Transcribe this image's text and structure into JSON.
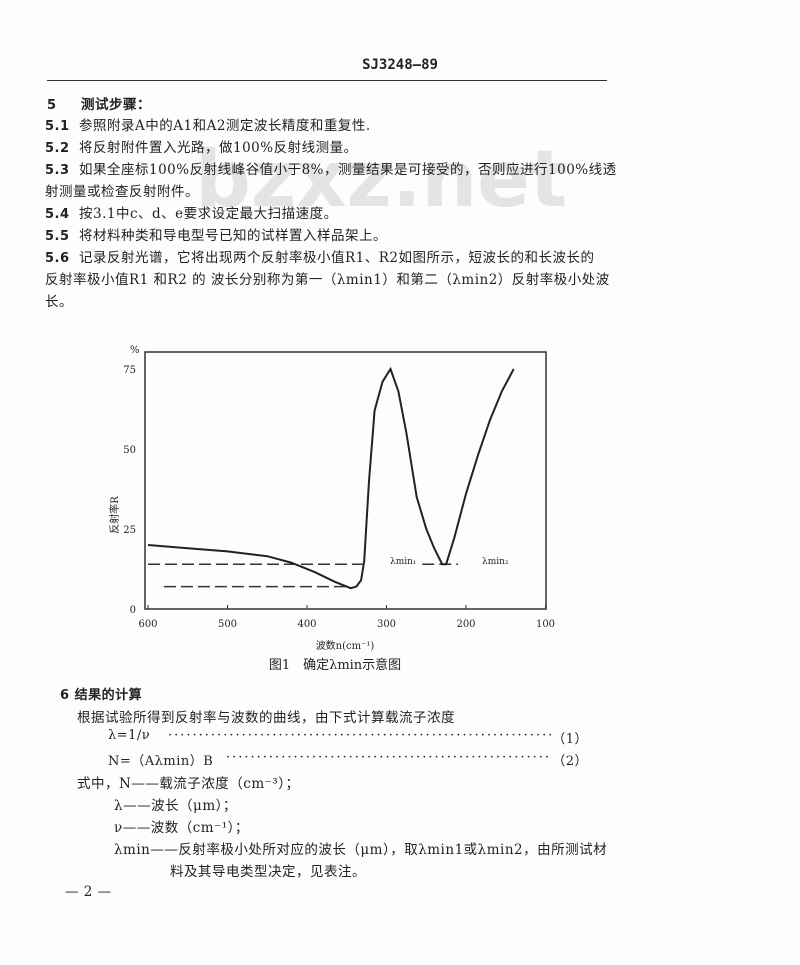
{
  "header": "SJ3248—89",
  "watermark": "bzxz.net",
  "section5": {
    "number": "5",
    "title": "测试步骤：",
    "items": [
      {
        "num": "5.1",
        "text": "参照附录A中的A1和A2测定波长精度和重复性."
      },
      {
        "num": "5.2",
        "text": "将反射附件置入光路，做100%反射线测量。"
      },
      {
        "num": "5.3",
        "text": "如果全座标100%反射线峰谷值小于8%，测量结果是可接受的，否则应进行100%线透",
        "cont": "射测量或检查反射附件。"
      },
      {
        "num": "5.4",
        "text": "按3.1中c、d、e要求设定最大扫描速度。"
      },
      {
        "num": "5.5",
        "text": "将材料种类和导电型号已知的试样置入样品架上。"
      },
      {
        "num": "5.6",
        "text": "记录反射光谱，它将出现两个反射率极小值R1、R2如图所示，短波长的和长波长的",
        "cont": "反射率极小值R1 和R2 的 波长分别称为第一（λmin1）和第二（λmin2）反射率极小处波",
        "cont2": "长。"
      }
    ]
  },
  "chart_data": {
    "type": "line",
    "caption": "图1　确定λmin示意图",
    "xlabel": "波数n(cm⁻¹)",
    "ylabel": "反射率R",
    "yunit": "%",
    "xlim": [
      600,
      100
    ],
    "ylim": [
      0,
      80
    ],
    "xticks": [
      "600",
      "500",
      "400",
      "300",
      "200",
      "100"
    ],
    "yticks": [
      "0",
      "25",
      "50",
      "75"
    ],
    "grid": false,
    "series": [
      {
        "x": [
          600,
          550,
          500,
          450,
          420,
          390,
          365,
          350,
          345,
          338,
          332,
          328,
          322,
          315,
          305,
          295,
          285,
          275,
          262,
          250,
          240,
          230,
          225,
          215,
          200,
          185,
          170,
          155,
          140
        ],
        "y": [
          20,
          19,
          18,
          16.5,
          14.5,
          11.5,
          8.5,
          7,
          6.5,
          7,
          9,
          15,
          40,
          62,
          71,
          75,
          68,
          55,
          35,
          25,
          19,
          14,
          14,
          22,
          36,
          48,
          59,
          68,
          75
        ]
      }
    ],
    "reference_lines": [
      {
        "y": 14,
        "x_from": 600,
        "x_to": 330
      },
      {
        "y": 14,
        "x_from": 255,
        "x_to": 210
      },
      {
        "y": 7,
        "x_from": 580,
        "x_to": 345
      }
    ],
    "annotations": [
      "λmin₁",
      "λmin₂"
    ]
  },
  "section6": {
    "number": "6",
    "title": "结果的计算",
    "intro": "根据试验所得到反射率与波数的曲线，由下式计算载流子浓度",
    "equations": [
      {
        "expr": "λ=1/ν",
        "label": "（1）"
      },
      {
        "expr": "N=（Aλmin）B",
        "label": "（2）"
      }
    ],
    "where_label": "式中，",
    "definitions": [
      {
        "sym": "N",
        "text": "——载流子浓度（cm⁻³）；"
      },
      {
        "sym": "λ",
        "text": "——波长（μm）；"
      },
      {
        "sym": "ν",
        "text": "——波数（cm⁻¹）；"
      },
      {
        "sym": "λmin",
        "text": "——反射率极小处所对应的波长（μm），取λmin1或λmin2，由所测试材",
        "cont": "料及其导电类型决定，见表注。"
      }
    ]
  },
  "page_number": "— 2 —"
}
